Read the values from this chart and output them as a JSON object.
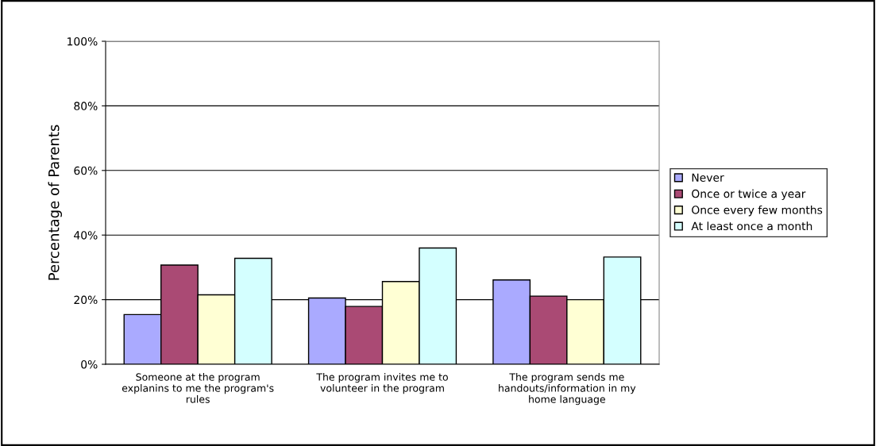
{
  "chart_data": {
    "type": "bar",
    "ylabel": "Percentage of Parents",
    "categories": [
      "Someone at the program explanins to me the program's rules",
      "The program invites me to volunteer in the program",
      "The program sends me handouts/information in my home language"
    ],
    "series": [
      {
        "name": "Never",
        "color": "#aaaaff",
        "values": [
          15.4,
          20.5,
          26.1
        ]
      },
      {
        "name": "Once or twice a year",
        "color": "#aa4a74",
        "values": [
          30.7,
          17.9,
          21.1
        ]
      },
      {
        "name": "Once every few months",
        "color": "#ffffd4",
        "values": [
          21.5,
          25.6,
          20.0
        ]
      },
      {
        "name": "At least once a month",
        "color": "#d4ffff",
        "values": [
          32.8,
          36.0,
          33.2
        ]
      }
    ],
    "ylim": [
      0,
      100
    ],
    "yticks": [
      {
        "value": 0,
        "label": "0%"
      },
      {
        "value": 20,
        "label": "20%"
      },
      {
        "value": 40,
        "label": "40%"
      },
      {
        "value": 60,
        "label": "60%"
      },
      {
        "value": 80,
        "label": "80%"
      },
      {
        "value": 100,
        "label": "100%"
      }
    ],
    "grid": "y",
    "legend": "right"
  }
}
